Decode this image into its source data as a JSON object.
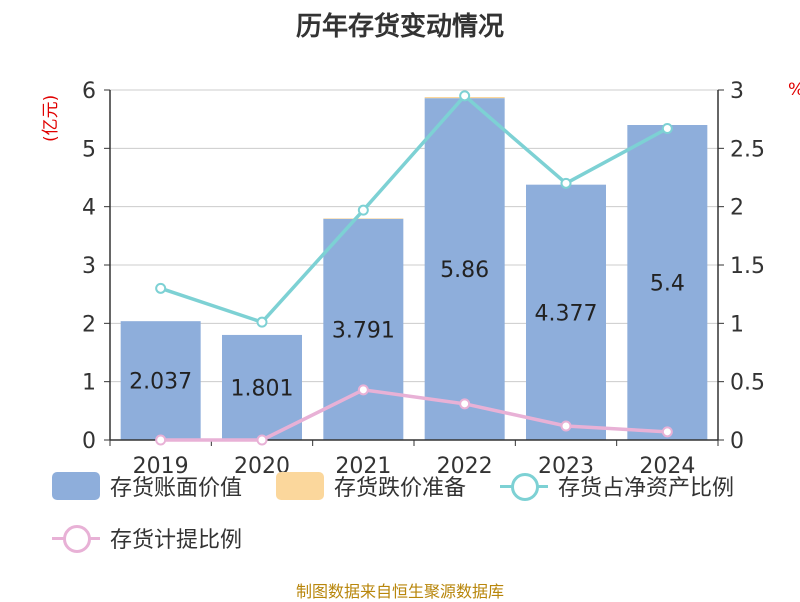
{
  "title": "历年存货变动情况",
  "source": "制图数据来自恒生聚源数据库",
  "chart_data": {
    "type": "bar",
    "categories": [
      "2019",
      "2020",
      "2021",
      "2022",
      "2023",
      "2024"
    ],
    "y_left": {
      "unit_label": "(亿元)",
      "min": 0,
      "max": 6,
      "ticks": [
        "0",
        "1",
        "2",
        "3",
        "4",
        "5",
        "6"
      ]
    },
    "y_right": {
      "unit_label": "%",
      "min": 0,
      "max": 3,
      "ticks": [
        "0",
        "0.5",
        "1",
        "1.5",
        "2",
        "2.5",
        "3"
      ]
    },
    "bar_series": [
      {
        "name": "存货账面价值",
        "color": "#8eaedb",
        "values": [
          2.037,
          1.801,
          3.791,
          5.86,
          4.377,
          5.4
        ],
        "labels": [
          "2.037",
          "1.801",
          "3.791",
          "5.86",
          "4.377",
          "5.4"
        ]
      },
      {
        "name": "存货跌价准备",
        "color": "#fbd79c",
        "values": [
          0.0,
          0.0,
          0.01,
          0.02,
          0.0,
          0.0
        ]
      }
    ],
    "line_series": [
      {
        "name": "存货占净资产比例",
        "color": "#7dd1d4",
        "axis": "right",
        "values": [
          1.3,
          1.01,
          1.97,
          2.95,
          2.2,
          2.67
        ]
      },
      {
        "name": "存货计提比例",
        "color": "#e8b1d6",
        "axis": "right",
        "values": [
          0.0,
          0.0,
          0.43,
          0.31,
          0.12,
          0.07
        ]
      }
    ],
    "grid": true,
    "legend_position": "bottom"
  }
}
